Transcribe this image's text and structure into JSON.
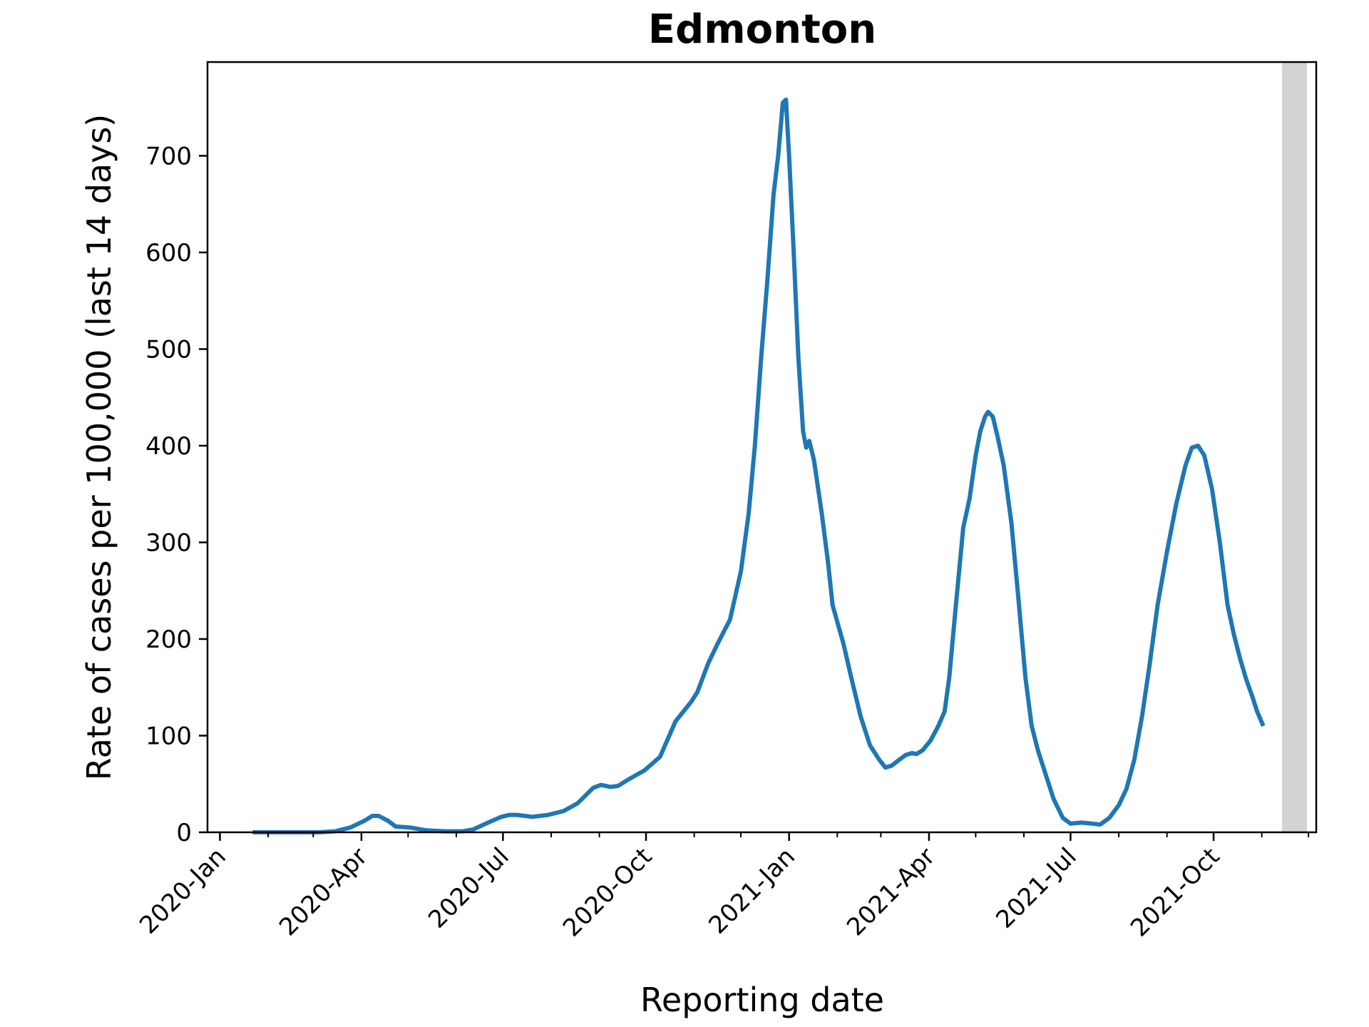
{
  "chart_data": {
    "type": "line",
    "title": "Edmonton",
    "xlabel": "Reporting date",
    "ylabel": "Rate of cases per 100,000 (last 14 days)",
    "xlim": [
      "2019-12-24",
      "2021-12-06"
    ],
    "ylim": [
      0,
      797
    ],
    "grid": false,
    "x_ticks": [
      {
        "date": "2020-01-01",
        "label": "2020-Jan"
      },
      {
        "date": "2020-04-01",
        "label": "2020-Apr"
      },
      {
        "date": "2020-07-01",
        "label": "2020-Jul"
      },
      {
        "date": "2020-10-01",
        "label": "2020-Oct"
      },
      {
        "date": "2021-01-01",
        "label": "2021-Jan"
      },
      {
        "date": "2021-04-01",
        "label": "2021-Apr"
      },
      {
        "date": "2021-07-01",
        "label": "2021-Jul"
      },
      {
        "date": "2021-10-01",
        "label": "2021-Oct"
      }
    ],
    "x_minor_ticks": [
      "2020-02-01",
      "2020-03-01",
      "2020-05-01",
      "2020-06-01",
      "2020-08-01",
      "2020-09-01",
      "2020-11-01",
      "2020-12-01",
      "2021-02-01",
      "2021-03-01",
      "2021-05-01",
      "2021-06-01",
      "2021-08-01",
      "2021-09-01",
      "2021-11-01",
      "2021-12-01"
    ],
    "y_ticks": [
      0,
      100,
      200,
      300,
      400,
      500,
      600,
      700
    ],
    "shaded_region": {
      "x": [
        "2021-11-14",
        "2021-11-30"
      ],
      "color": "#d3d3d3"
    },
    "series": [
      {
        "color": "#1f77b4",
        "points": [
          [
            "2020-01-22",
            0
          ],
          [
            "2020-02-15",
            0
          ],
          [
            "2020-03-05",
            0
          ],
          [
            "2020-03-15",
            1
          ],
          [
            "2020-03-25",
            5
          ],
          [
            "2020-04-03",
            12
          ],
          [
            "2020-04-08",
            17
          ],
          [
            "2020-04-12",
            17
          ],
          [
            "2020-04-18",
            12
          ],
          [
            "2020-04-23",
            6
          ],
          [
            "2020-05-02",
            5
          ],
          [
            "2020-05-13",
            2
          ],
          [
            "2020-05-25",
            1
          ],
          [
            "2020-06-05",
            1
          ],
          [
            "2020-06-12",
            3
          ],
          [
            "2020-06-20",
            9
          ],
          [
            "2020-06-30",
            16
          ],
          [
            "2020-07-05",
            18
          ],
          [
            "2020-07-10",
            18
          ],
          [
            "2020-07-20",
            16
          ],
          [
            "2020-07-30",
            18
          ],
          [
            "2020-08-09",
            22
          ],
          [
            "2020-08-18",
            30
          ],
          [
            "2020-08-28",
            46
          ],
          [
            "2020-09-02",
            49
          ],
          [
            "2020-09-08",
            47
          ],
          [
            "2020-09-13",
            48
          ],
          [
            "2020-09-20",
            55
          ],
          [
            "2020-09-30",
            64
          ],
          [
            "2020-10-05",
            71
          ],
          [
            "2020-10-10",
            78
          ],
          [
            "2020-10-20",
            115
          ],
          [
            "2020-10-30",
            135
          ],
          [
            "2020-11-03",
            145
          ],
          [
            "2020-11-10",
            175
          ],
          [
            "2020-11-16",
            195
          ],
          [
            "2020-11-24",
            220
          ],
          [
            "2020-12-01",
            270
          ],
          [
            "2020-12-06",
            330
          ],
          [
            "2020-12-10",
            400
          ],
          [
            "2020-12-14",
            490
          ],
          [
            "2020-12-18",
            570
          ],
          [
            "2020-12-22",
            660
          ],
          [
            "2020-12-25",
            700
          ],
          [
            "2020-12-28",
            755
          ],
          [
            "2020-12-30",
            758
          ],
          [
            "2021-01-01",
            700
          ],
          [
            "2021-01-04",
            600
          ],
          [
            "2021-01-07",
            490
          ],
          [
            "2021-01-10",
            415
          ],
          [
            "2021-01-12",
            398
          ],
          [
            "2021-01-14",
            405
          ],
          [
            "2021-01-17",
            385
          ],
          [
            "2021-01-22",
            330
          ],
          [
            "2021-01-26",
            280
          ],
          [
            "2021-01-29",
            235
          ],
          [
            "2021-02-05",
            195
          ],
          [
            "2021-02-10",
            160
          ],
          [
            "2021-02-16",
            120
          ],
          [
            "2021-02-22",
            90
          ],
          [
            "2021-02-28",
            75
          ],
          [
            "2021-03-04",
            67
          ],
          [
            "2021-03-08",
            69
          ],
          [
            "2021-03-12",
            74
          ],
          [
            "2021-03-17",
            80
          ],
          [
            "2021-03-21",
            82
          ],
          [
            "2021-03-24",
            81
          ],
          [
            "2021-03-28",
            85
          ],
          [
            "2021-04-02",
            95
          ],
          [
            "2021-04-07",
            110
          ],
          [
            "2021-04-11",
            125
          ],
          [
            "2021-04-14",
            160
          ],
          [
            "2021-04-18",
            230
          ],
          [
            "2021-04-23",
            315
          ],
          [
            "2021-04-27",
            345
          ],
          [
            "2021-05-01",
            390
          ],
          [
            "2021-05-04",
            415
          ],
          [
            "2021-05-07",
            430
          ],
          [
            "2021-05-09",
            435
          ],
          [
            "2021-05-12",
            430
          ],
          [
            "2021-05-15",
            410
          ],
          [
            "2021-05-19",
            380
          ],
          [
            "2021-05-24",
            320
          ],
          [
            "2021-05-28",
            250
          ],
          [
            "2021-06-02",
            160
          ],
          [
            "2021-06-06",
            110
          ],
          [
            "2021-06-10",
            85
          ],
          [
            "2021-06-15",
            60
          ],
          [
            "2021-06-20",
            35
          ],
          [
            "2021-06-26",
            15
          ],
          [
            "2021-07-01",
            9
          ],
          [
            "2021-07-08",
            10
          ],
          [
            "2021-07-15",
            9
          ],
          [
            "2021-07-20",
            8
          ],
          [
            "2021-07-26",
            15
          ],
          [
            "2021-08-01",
            28
          ],
          [
            "2021-08-06",
            45
          ],
          [
            "2021-08-11",
            75
          ],
          [
            "2021-08-16",
            120
          ],
          [
            "2021-08-21",
            175
          ],
          [
            "2021-08-26",
            235
          ],
          [
            "2021-09-01",
            290
          ],
          [
            "2021-09-07",
            340
          ],
          [
            "2021-09-13",
            380
          ],
          [
            "2021-09-17",
            398
          ],
          [
            "2021-09-21",
            400
          ],
          [
            "2021-09-25",
            390
          ],
          [
            "2021-09-30",
            355
          ],
          [
            "2021-10-05",
            300
          ],
          [
            "2021-10-10",
            235
          ],
          [
            "2021-10-14",
            205
          ],
          [
            "2021-10-18",
            180
          ],
          [
            "2021-10-22",
            158
          ],
          [
            "2021-10-26",
            140
          ],
          [
            "2021-10-29",
            125
          ],
          [
            "2021-11-02",
            110
          ]
        ]
      }
    ]
  }
}
